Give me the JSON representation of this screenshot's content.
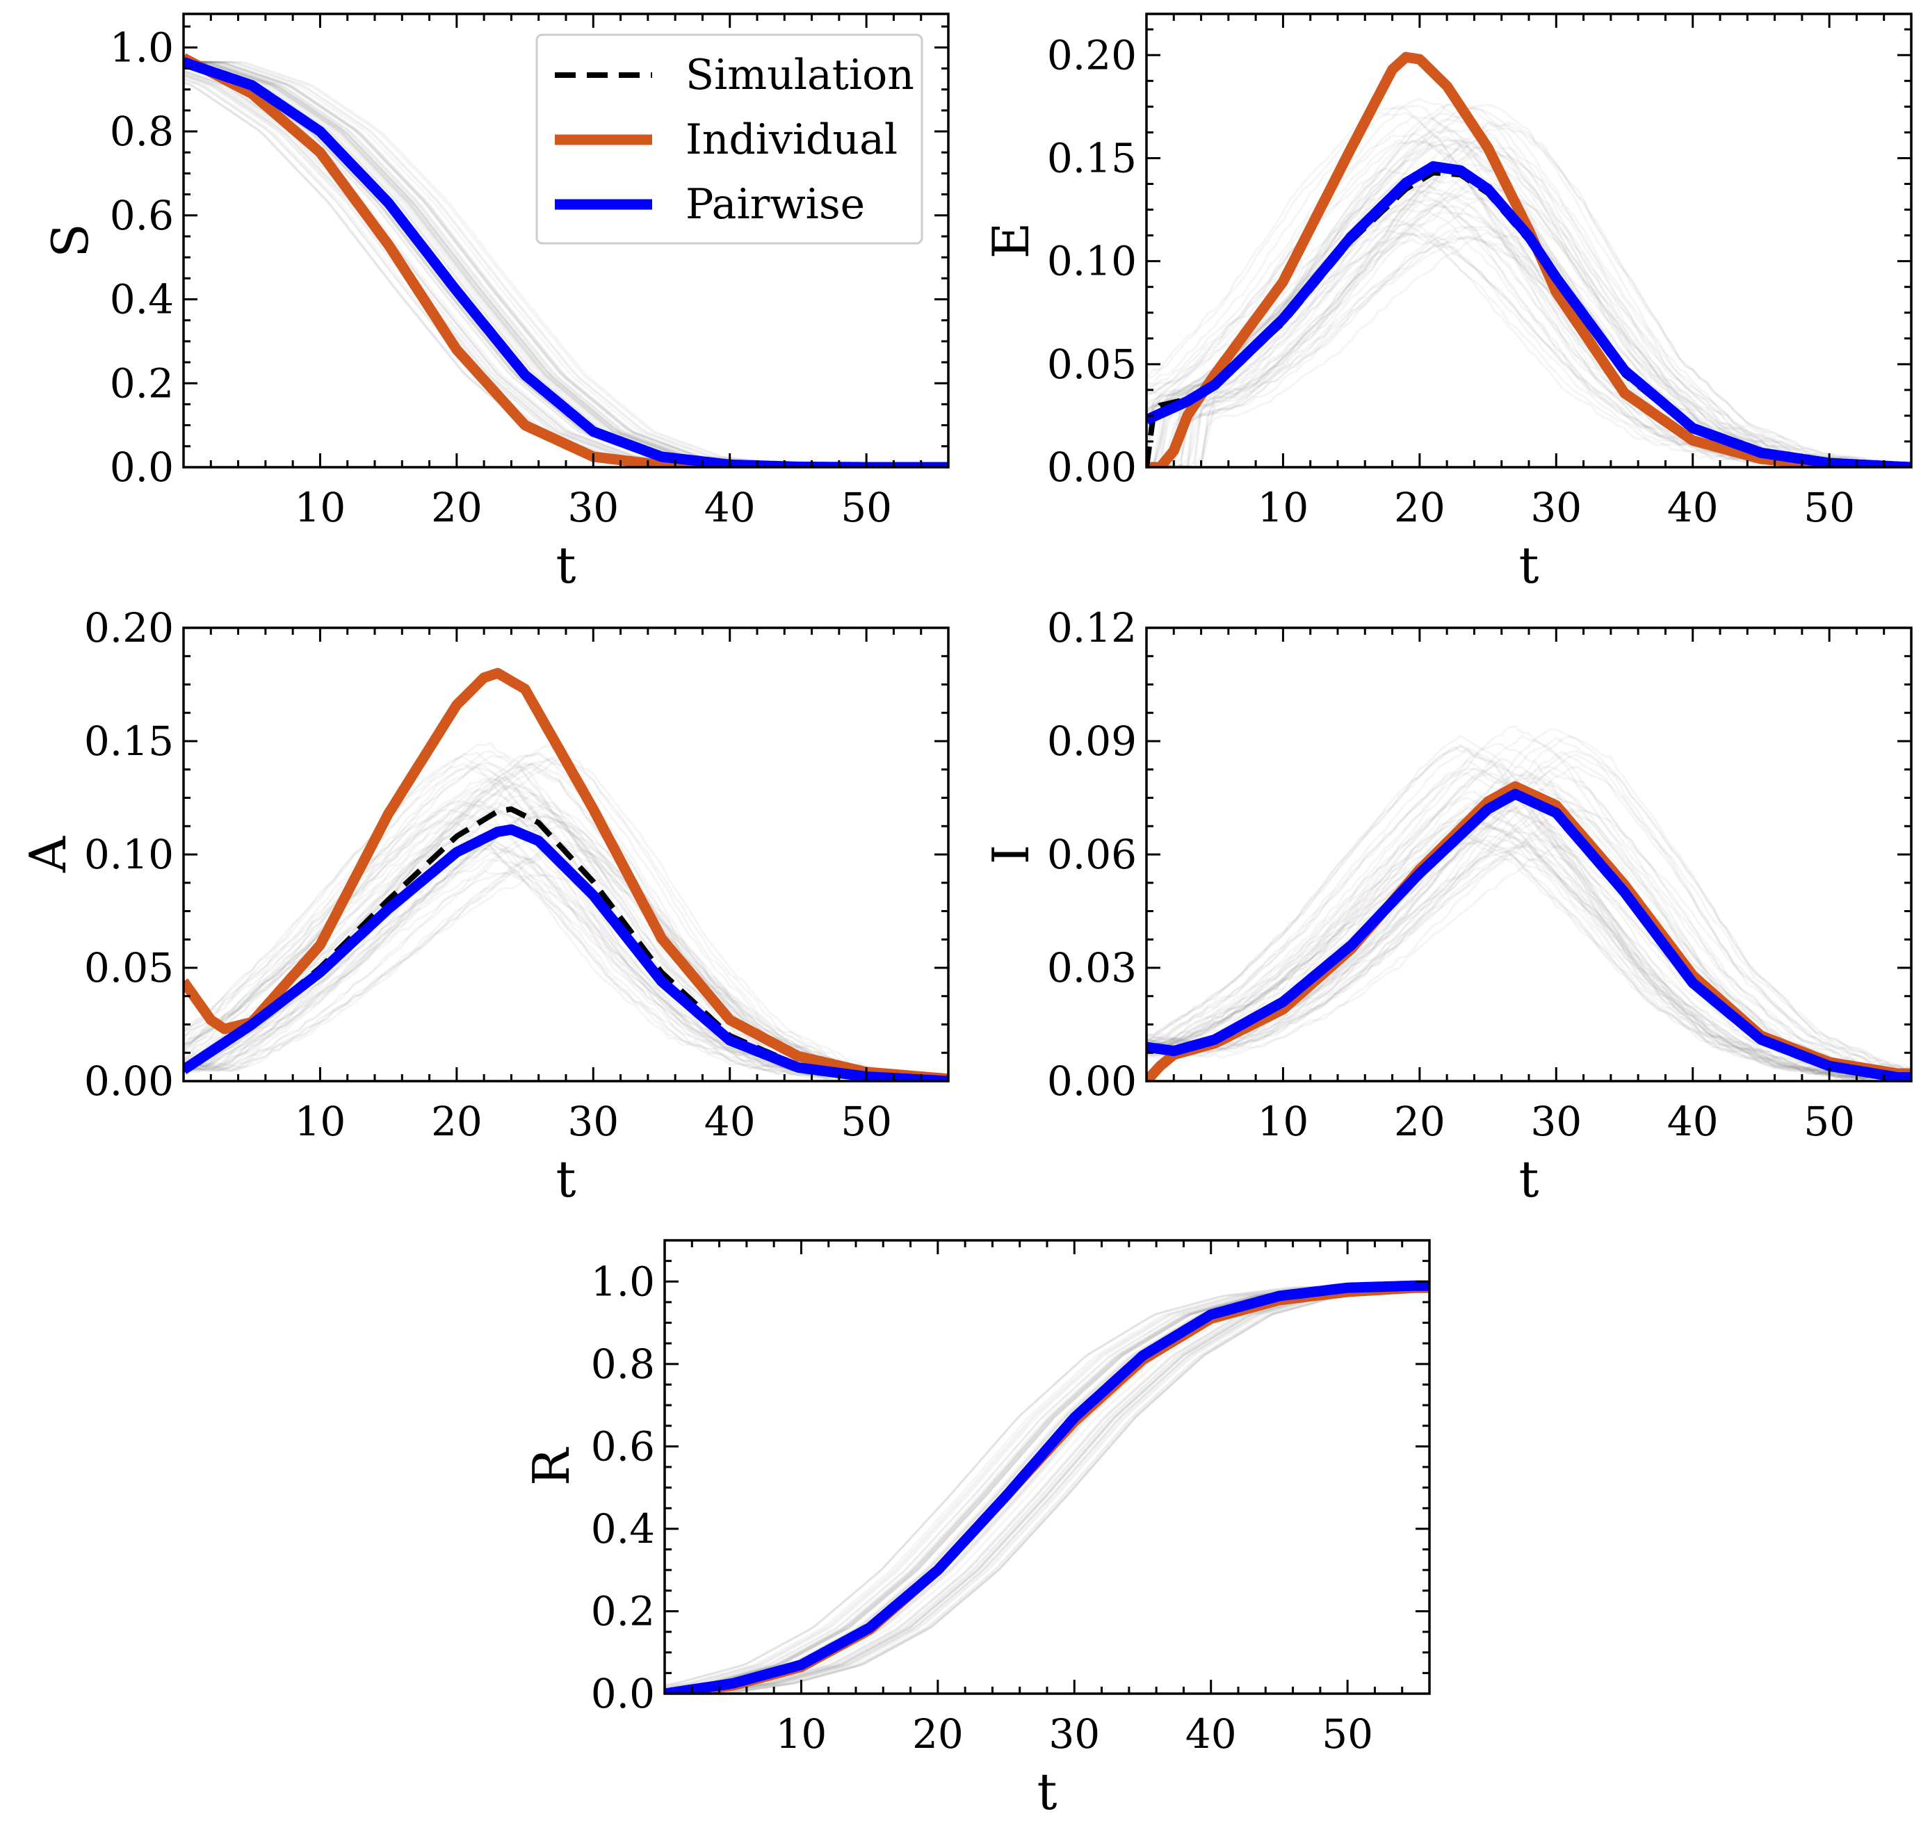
{
  "legend": {
    "simulation": "Simulation",
    "individual": "Individual",
    "pairwise": "Pairwise"
  },
  "colors": {
    "simulation": "#000000",
    "individual": "#d2571d",
    "pairwise": "#0000ff",
    "ensemble": "#808080"
  },
  "chart_data": [
    {
      "id": "S",
      "type": "line",
      "ylabel": "S",
      "xlabel": "t",
      "xlim": [
        0,
        56
      ],
      "ylim": [
        0,
        1.08
      ],
      "xticks": [
        10,
        20,
        30,
        40,
        50
      ],
      "xtick_labels": [
        "10",
        "20",
        "30",
        "40",
        "50"
      ],
      "yticks": [
        0,
        0.2,
        0.4,
        0.6,
        0.8,
        1.0
      ],
      "ytick_labels": [
        "0.0",
        "0.2",
        "0.4",
        "0.6",
        "0.8",
        "1.0"
      ],
      "series": [
        {
          "name": "Simulation",
          "points": [
            [
              0,
              0.965
            ],
            [
              5,
              0.91
            ],
            [
              10,
              0.8
            ],
            [
              15,
              0.63
            ],
            [
              20,
              0.42
            ],
            [
              25,
              0.22
            ],
            [
              30,
              0.085
            ],
            [
              35,
              0.025
            ],
            [
              40,
              0.006
            ],
            [
              45,
              0.001
            ],
            [
              50,
              0.0
            ],
            [
              56,
              0.0
            ]
          ]
        },
        {
          "name": "Individual",
          "points": [
            [
              0,
              0.975
            ],
            [
              5,
              0.89
            ],
            [
              10,
              0.75
            ],
            [
              15,
              0.53
            ],
            [
              20,
              0.28
            ],
            [
              25,
              0.1
            ],
            [
              30,
              0.025
            ],
            [
              35,
              0.005
            ],
            [
              40,
              0.001
            ],
            [
              45,
              0.0
            ],
            [
              50,
              0.0
            ],
            [
              56,
              0.0
            ]
          ]
        },
        {
          "name": "Pairwise",
          "points": [
            [
              0,
              0.965
            ],
            [
              5,
              0.91
            ],
            [
              10,
              0.8
            ],
            [
              15,
              0.63
            ],
            [
              20,
              0.42
            ],
            [
              25,
              0.22
            ],
            [
              30,
              0.085
            ],
            [
              35,
              0.025
            ],
            [
              40,
              0.006
            ],
            [
              45,
              0.001
            ],
            [
              50,
              0.0
            ],
            [
              56,
              0.0
            ]
          ]
        }
      ]
    },
    {
      "id": "E",
      "type": "line",
      "ylabel": "E",
      "xlabel": "t",
      "xlim": [
        0,
        56
      ],
      "ylim": [
        0,
        0.22
      ],
      "xticks": [
        10,
        20,
        30,
        40,
        50
      ],
      "xtick_labels": [
        "10",
        "20",
        "30",
        "40",
        "50"
      ],
      "yticks": [
        0,
        0.05,
        0.1,
        0.15,
        0.2
      ],
      "ytick_labels": [
        "0.00",
        "0.05",
        "0.10",
        "0.15",
        "0.20"
      ],
      "series": [
        {
          "name": "Simulation",
          "points": [
            [
              0,
              0.0
            ],
            [
              0.5,
              0.025
            ],
            [
              1,
              0.03
            ],
            [
              3,
              0.033
            ],
            [
              5,
              0.04
            ],
            [
              10,
              0.07
            ],
            [
              15,
              0.11
            ],
            [
              19,
              0.135
            ],
            [
              21,
              0.143
            ],
            [
              23,
              0.142
            ],
            [
              25,
              0.133
            ],
            [
              28,
              0.11
            ],
            [
              30,
              0.09
            ],
            [
              35,
              0.045
            ],
            [
              40,
              0.018
            ],
            [
              45,
              0.006
            ],
            [
              50,
              0.002
            ],
            [
              56,
              0.0
            ]
          ]
        },
        {
          "name": "Individual",
          "points": [
            [
              0,
              0.0
            ],
            [
              1,
              0.0
            ],
            [
              2,
              0.008
            ],
            [
              3,
              0.025
            ],
            [
              5,
              0.045
            ],
            [
              10,
              0.09
            ],
            [
              15,
              0.155
            ],
            [
              18,
              0.193
            ],
            [
              19,
              0.199
            ],
            [
              20,
              0.198
            ],
            [
              22,
              0.185
            ],
            [
              25,
              0.155
            ],
            [
              28,
              0.115
            ],
            [
              30,
              0.085
            ],
            [
              35,
              0.036
            ],
            [
              40,
              0.013
            ],
            [
              45,
              0.004
            ],
            [
              50,
              0.001
            ],
            [
              56,
              0.0
            ]
          ]
        },
        {
          "name": "Pairwise",
          "points": [
            [
              0,
              0.023
            ],
            [
              3,
              0.032
            ],
            [
              5,
              0.04
            ],
            [
              10,
              0.072
            ],
            [
              15,
              0.112
            ],
            [
              19,
              0.138
            ],
            [
              21,
              0.146
            ],
            [
              23,
              0.144
            ],
            [
              25,
              0.135
            ],
            [
              28,
              0.112
            ],
            [
              30,
              0.092
            ],
            [
              35,
              0.047
            ],
            [
              40,
              0.019
            ],
            [
              45,
              0.007
            ],
            [
              50,
              0.002
            ],
            [
              56,
              0.0
            ]
          ]
        }
      ]
    },
    {
      "id": "A",
      "type": "line",
      "ylabel": "A",
      "xlabel": "t",
      "xlim": [
        0,
        56
      ],
      "ylim": [
        0,
        0.2
      ],
      "xticks": [
        10,
        20,
        30,
        40,
        50
      ],
      "xtick_labels": [
        "10",
        "20",
        "30",
        "40",
        "50"
      ],
      "yticks": [
        0,
        0.05,
        0.1,
        0.15,
        0.2
      ],
      "ytick_labels": [
        "0.00",
        "0.05",
        "0.10",
        "0.15",
        "0.20"
      ],
      "series": [
        {
          "name": "Simulation",
          "points": [
            [
              0,
              0.006
            ],
            [
              5,
              0.025
            ],
            [
              10,
              0.05
            ],
            [
              15,
              0.08
            ],
            [
              20,
              0.108
            ],
            [
              23,
              0.119
            ],
            [
              24,
              0.12
            ],
            [
              26,
              0.114
            ],
            [
              30,
              0.088
            ],
            [
              35,
              0.048
            ],
            [
              40,
              0.02
            ],
            [
              45,
              0.007
            ],
            [
              50,
              0.002
            ],
            [
              56,
              0.0
            ]
          ]
        },
        {
          "name": "Individual",
          "points": [
            [
              0,
              0.044
            ],
            [
              2,
              0.027
            ],
            [
              3,
              0.023
            ],
            [
              5,
              0.026
            ],
            [
              10,
              0.06
            ],
            [
              15,
              0.118
            ],
            [
              20,
              0.166
            ],
            [
              22,
              0.178
            ],
            [
              23,
              0.18
            ],
            [
              25,
              0.173
            ],
            [
              30,
              0.12
            ],
            [
              35,
              0.063
            ],
            [
              40,
              0.027
            ],
            [
              45,
              0.011
            ],
            [
              50,
              0.004
            ],
            [
              56,
              0.001
            ]
          ]
        },
        {
          "name": "Pairwise",
          "points": [
            [
              0,
              0.005
            ],
            [
              5,
              0.025
            ],
            [
              10,
              0.048
            ],
            [
              15,
              0.076
            ],
            [
              20,
              0.101
            ],
            [
              23,
              0.11
            ],
            [
              24,
              0.111
            ],
            [
              26,
              0.106
            ],
            [
              30,
              0.082
            ],
            [
              35,
              0.044
            ],
            [
              40,
              0.018
            ],
            [
              45,
              0.006
            ],
            [
              50,
              0.002
            ],
            [
              56,
              0.0
            ]
          ]
        }
      ]
    },
    {
      "id": "I",
      "type": "line",
      "ylabel": "I",
      "xlabel": "t",
      "xlim": [
        0,
        56
      ],
      "ylim": [
        0,
        0.12
      ],
      "xticks": [
        10,
        20,
        30,
        40,
        50
      ],
      "xtick_labels": [
        "10",
        "20",
        "30",
        "40",
        "50"
      ],
      "yticks": [
        0,
        0.03,
        0.06,
        0.09,
        0.12
      ],
      "ytick_labels": [
        "0.00",
        "0.03",
        "0.06",
        "0.09",
        "0.12"
      ],
      "series": [
        {
          "name": "Simulation",
          "points": [
            [
              0,
              0.009
            ],
            [
              2,
              0.008
            ],
            [
              5,
              0.011
            ],
            [
              10,
              0.021
            ],
            [
              15,
              0.036
            ],
            [
              20,
              0.055
            ],
            [
              25,
              0.072
            ],
            [
              27,
              0.076
            ],
            [
              30,
              0.071
            ],
            [
              35,
              0.05
            ],
            [
              40,
              0.026
            ],
            [
              45,
              0.011
            ],
            [
              50,
              0.004
            ],
            [
              55,
              0.001
            ]
          ]
        },
        {
          "name": "Individual",
          "points": [
            [
              0,
              0.0
            ],
            [
              1,
              0.004
            ],
            [
              2,
              0.007
            ],
            [
              5,
              0.01
            ],
            [
              10,
              0.019
            ],
            [
              15,
              0.035
            ],
            [
              20,
              0.056
            ],
            [
              25,
              0.074
            ],
            [
              27,
              0.078
            ],
            [
              30,
              0.073
            ],
            [
              35,
              0.052
            ],
            [
              40,
              0.028
            ],
            [
              45,
              0.012
            ],
            [
              50,
              0.005
            ],
            [
              55,
              0.002
            ]
          ]
        },
        {
          "name": "Pairwise",
          "points": [
            [
              0,
              0.009
            ],
            [
              2,
              0.008
            ],
            [
              5,
              0.011
            ],
            [
              10,
              0.021
            ],
            [
              15,
              0.036
            ],
            [
              20,
              0.055
            ],
            [
              25,
              0.072
            ],
            [
              27,
              0.076
            ],
            [
              30,
              0.071
            ],
            [
              35,
              0.05
            ],
            [
              40,
              0.026
            ],
            [
              45,
              0.011
            ],
            [
              50,
              0.004
            ],
            [
              55,
              0.001
            ]
          ]
        }
      ]
    },
    {
      "id": "R",
      "type": "line",
      "ylabel": "R",
      "xlabel": "t",
      "xlim": [
        0,
        56
      ],
      "ylim": [
        0,
        1.1
      ],
      "xticks": [
        10,
        20,
        30,
        40,
        50
      ],
      "xtick_labels": [
        "10",
        "20",
        "30",
        "40",
        "50"
      ],
      "yticks": [
        0,
        0.2,
        0.4,
        0.6,
        0.8,
        1.0
      ],
      "ytick_labels": [
        "0.0",
        "0.2",
        "0.4",
        "0.6",
        "0.8",
        "1.0"
      ],
      "series": [
        {
          "name": "Simulation",
          "points": [
            [
              0,
              0.0
            ],
            [
              5,
              0.025
            ],
            [
              10,
              0.07
            ],
            [
              15,
              0.16
            ],
            [
              20,
              0.3
            ],
            [
              25,
              0.48
            ],
            [
              30,
              0.67
            ],
            [
              35,
              0.82
            ],
            [
              40,
              0.92
            ],
            [
              45,
              0.965
            ],
            [
              50,
              0.985
            ],
            [
              55,
              0.99
            ]
          ]
        },
        {
          "name": "Individual",
          "points": [
            [
              0,
              0.0
            ],
            [
              5,
              0.02
            ],
            [
              10,
              0.065
            ],
            [
              15,
              0.155
            ],
            [
              20,
              0.3
            ],
            [
              25,
              0.48
            ],
            [
              30,
              0.66
            ],
            [
              35,
              0.81
            ],
            [
              40,
              0.91
            ],
            [
              45,
              0.955
            ],
            [
              50,
              0.975
            ],
            [
              55,
              0.985
            ]
          ]
        },
        {
          "name": "Pairwise",
          "points": [
            [
              0,
              0.0
            ],
            [
              5,
              0.025
            ],
            [
              10,
              0.07
            ],
            [
              15,
              0.16
            ],
            [
              20,
              0.3
            ],
            [
              25,
              0.48
            ],
            [
              30,
              0.67
            ],
            [
              35,
              0.82
            ],
            [
              40,
              0.92
            ],
            [
              45,
              0.965
            ],
            [
              50,
              0.985
            ],
            [
              55,
              0.99
            ]
          ]
        }
      ]
    }
  ]
}
